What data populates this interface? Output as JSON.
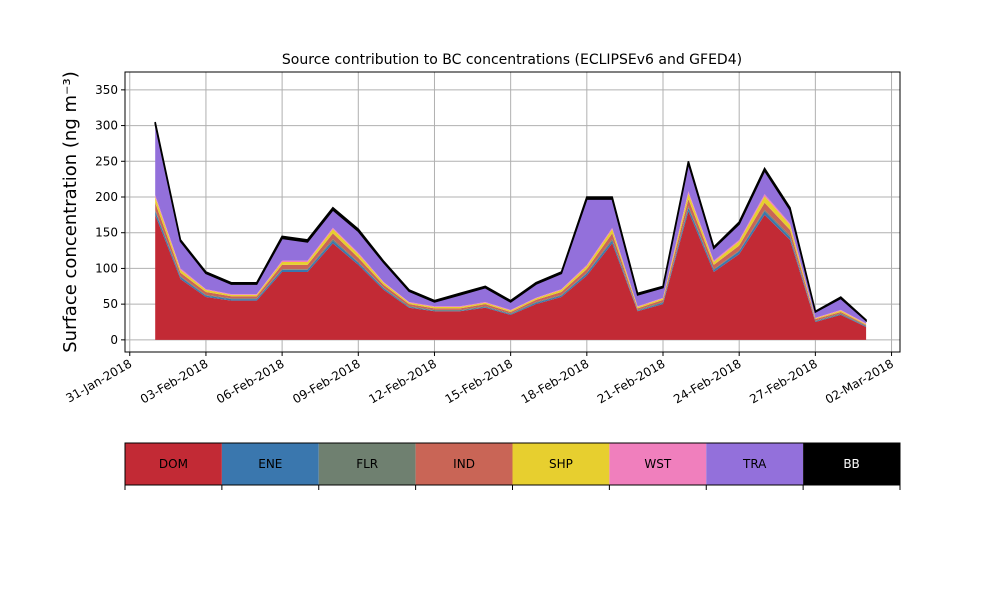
{
  "chart_data": {
    "type": "stacked_area",
    "title": "Source contribution to BC concentrations (ECLIPSEv6 and GFED4)",
    "y_label": "Surface concentration (ng m⁻³)",
    "x": [
      "2018-02-01",
      "2018-02-02",
      "2018-02-03",
      "2018-02-04",
      "2018-02-05",
      "2018-02-06",
      "2018-02-07",
      "2018-02-08",
      "2018-02-09",
      "2018-02-10",
      "2018-02-11",
      "2018-02-12",
      "2018-02-13",
      "2018-02-14",
      "2018-02-15",
      "2018-02-16",
      "2018-02-17",
      "2018-02-18",
      "2018-02-19",
      "2018-02-20",
      "2018-02-21",
      "2018-02-22",
      "2018-02-23",
      "2018-02-24",
      "2018-02-25",
      "2018-02-26",
      "2018-02-27",
      "2018-02-28",
      "2018-03-01"
    ],
    "series": [
      {
        "name": "DOM",
        "color": "#c22a35",
        "values": [
          175,
          85,
          60,
          55,
          55,
          95,
          95,
          135,
          105,
          70,
          45,
          40,
          40,
          45,
          35,
          50,
          60,
          90,
          135,
          40,
          50,
          180,
          95,
          120,
          175,
          140,
          25,
          35,
          18
        ]
      },
      {
        "name": "ENE",
        "color": "#3a77ae",
        "values": [
          5,
          3,
          2,
          2,
          2,
          3,
          3,
          4,
          3,
          2,
          1,
          1,
          1,
          1,
          1,
          2,
          2,
          3,
          4,
          1,
          2,
          5,
          3,
          4,
          5,
          4,
          1,
          1,
          1
        ]
      },
      {
        "name": "FLR",
        "color": "#6f8070",
        "values": [
          2,
          1,
          1,
          1,
          1,
          1,
          1,
          2,
          1,
          1,
          1,
          1,
          1,
          1,
          1,
          1,
          1,
          1,
          2,
          1,
          1,
          2,
          1,
          1,
          2,
          2,
          1,
          1,
          1
        ]
      },
      {
        "name": "IND",
        "color": "#c96556",
        "values": [
          10,
          5,
          4,
          3,
          3,
          6,
          6,
          8,
          6,
          4,
          3,
          2,
          2,
          3,
          2,
          3,
          4,
          5,
          8,
          2,
          3,
          10,
          6,
          7,
          10,
          8,
          2,
          2,
          1
        ]
      },
      {
        "name": "SHP",
        "color": "#e7cf2f",
        "values": [
          8,
          4,
          3,
          2,
          2,
          4,
          4,
          6,
          5,
          3,
          2,
          2,
          2,
          2,
          2,
          2,
          3,
          4,
          6,
          2,
          2,
          8,
          4,
          6,
          9,
          7,
          1,
          2,
          1
        ]
      },
      {
        "name": "WST",
        "color": "#f07fbd",
        "values": [
          3,
          2,
          1,
          1,
          1,
          2,
          2,
          2,
          2,
          1,
          1,
          1,
          1,
          1,
          1,
          1,
          1,
          2,
          2,
          1,
          1,
          3,
          2,
          2,
          3,
          2,
          1,
          1,
          1
        ]
      },
      {
        "name": "TRA",
        "color": "#9370db",
        "values": [
          99,
          38,
          22,
          14,
          14,
          31,
          26,
          25,
          30,
          27,
          15,
          6,
          16,
          20,
          11,
          19,
          22,
          92,
          40,
          16,
          14,
          39,
          17,
          22,
          33,
          19,
          8,
          16,
          4
        ]
      },
      {
        "name": "BB",
        "color": "#000000",
        "values": [
          3,
          2,
          2,
          2,
          2,
          3,
          3,
          3,
          3,
          2,
          2,
          2,
          2,
          2,
          2,
          2,
          2,
          3,
          3,
          2,
          2,
          3,
          2,
          3,
          3,
          3,
          1,
          2,
          1
        ]
      }
    ],
    "xlim": [
      "2018-01-30T19:30Z",
      "2018-03-02T08:00Z"
    ],
    "xticks": [
      {
        "value": "2018-01-31",
        "label": "31-Jan-2018"
      },
      {
        "value": "2018-02-03",
        "label": "03-Feb-2018"
      },
      {
        "value": "2018-02-06",
        "label": "06-Feb-2018"
      },
      {
        "value": "2018-02-09",
        "label": "09-Feb-2018"
      },
      {
        "value": "2018-02-12",
        "label": "12-Feb-2018"
      },
      {
        "value": "2018-02-15",
        "label": "15-Feb-2018"
      },
      {
        "value": "2018-02-18",
        "label": "18-Feb-2018"
      },
      {
        "value": "2018-02-21",
        "label": "21-Feb-2018"
      },
      {
        "value": "2018-02-24",
        "label": "24-Feb-2018"
      },
      {
        "value": "2018-02-27",
        "label": "27-Feb-2018"
      },
      {
        "value": "2018-03-02",
        "label": "02-Mar-2018"
      }
    ],
    "ylim": [
      -17,
      375
    ],
    "yticks": [
      0,
      50,
      100,
      150,
      200,
      250,
      300,
      350
    ],
    "grid": true
  }
}
